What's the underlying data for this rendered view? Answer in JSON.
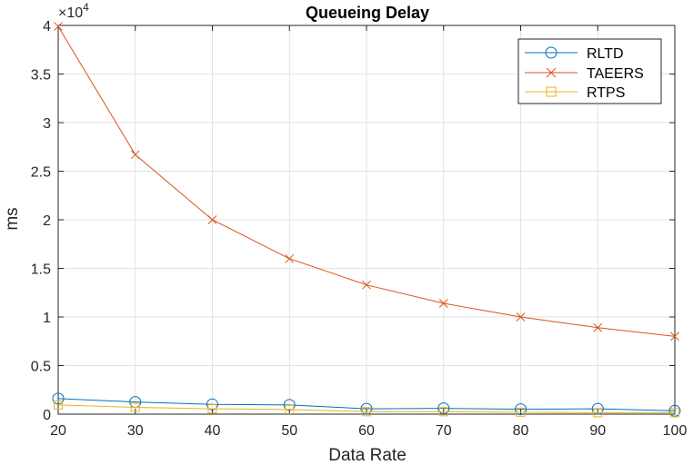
{
  "chart_data": {
    "type": "line",
    "title": "Queueing Delay",
    "xlabel": "Data Rate",
    "ylabel": "ms",
    "y_exponent_base": "×10",
    "y_exponent_power": "4",
    "x": [
      20,
      30,
      40,
      50,
      60,
      70,
      80,
      90,
      100
    ],
    "xlim": [
      20,
      100
    ],
    "ylim": [
      0,
      40000
    ],
    "x_ticks": [
      20,
      30,
      40,
      50,
      60,
      70,
      80,
      90,
      100
    ],
    "x_tick_labels": [
      "20",
      "30",
      "40",
      "50",
      "60",
      "70",
      "80",
      "90",
      "100"
    ],
    "y_ticks": [
      0,
      5000,
      10000,
      15000,
      20000,
      25000,
      30000,
      35000,
      40000
    ],
    "y_tick_labels": [
      "0",
      "0.5",
      "1",
      "1.5",
      "2",
      "2.5",
      "3",
      "3.5",
      "4"
    ],
    "grid": true,
    "legend_position": "top-right",
    "series": [
      {
        "name": "RLTD",
        "color": "#0072BD",
        "marker": "circle",
        "values": [
          1600,
          1250,
          1000,
          950,
          550,
          600,
          500,
          550,
          350
        ]
      },
      {
        "name": "TAEERS",
        "color": "#D95319",
        "marker": "x",
        "values": [
          39900,
          26700,
          20000,
          16000,
          13300,
          11400,
          10000,
          8900,
          8000
        ]
      },
      {
        "name": "RTPS",
        "color": "#EDB120",
        "marker": "square",
        "values": [
          950,
          700,
          550,
          480,
          250,
          250,
          200,
          150,
          150
        ]
      }
    ]
  }
}
